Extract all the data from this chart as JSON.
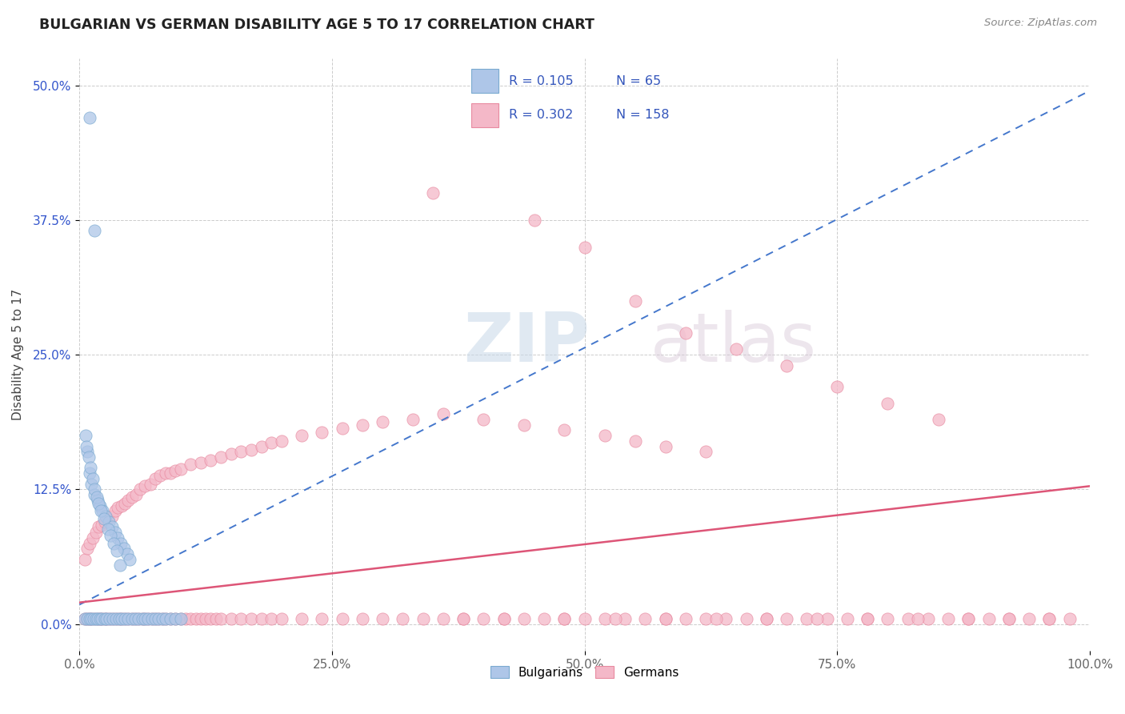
{
  "title": "BULGARIAN VS GERMAN DISABILITY AGE 5 TO 17 CORRELATION CHART",
  "source_text": "Source: ZipAtlas.com",
  "ylabel": "Disability Age 5 to 17",
  "xlim": [
    0,
    1.0
  ],
  "ylim": [
    -0.025,
    0.525
  ],
  "xticks": [
    0.0,
    0.25,
    0.5,
    0.75,
    1.0
  ],
  "xticklabels": [
    "0.0%",
    "25.0%",
    "50.0%",
    "75.0%",
    "100.0%"
  ],
  "yticks": [
    0.0,
    0.125,
    0.25,
    0.375,
    0.5
  ],
  "yticklabels": [
    "0.0%",
    "12.5%",
    "25.0%",
    "37.5%",
    "50.0%"
  ],
  "bulgarian_fill_color": "#aec6e8",
  "german_fill_color": "#f4b8c8",
  "bulgarian_edge_color": "#7aaad0",
  "german_edge_color": "#e88aa0",
  "bulgarian_line_color": "#4477cc",
  "german_line_color": "#dd5577",
  "watermark_color": "#d8e4f0",
  "legend_text_color": "#3355bb",
  "legend_R_bulgarian": "0.105",
  "legend_N_bulgarian": "65",
  "legend_R_german": "0.302",
  "legend_N_german": "158",
  "bulgarian_points_x": [
    0.01,
    0.015,
    0.005,
    0.008,
    0.01,
    0.012,
    0.014,
    0.016,
    0.018,
    0.02,
    0.022,
    0.025,
    0.027,
    0.03,
    0.033,
    0.036,
    0.039,
    0.042,
    0.045,
    0.048,
    0.052,
    0.055,
    0.058,
    0.062,
    0.065,
    0.068,
    0.072,
    0.075,
    0.078,
    0.082,
    0.085,
    0.09,
    0.095,
    0.1,
    0.008,
    0.01,
    0.012,
    0.015,
    0.018,
    0.02,
    0.023,
    0.026,
    0.029,
    0.032,
    0.035,
    0.038,
    0.041,
    0.044,
    0.047,
    0.05,
    0.006,
    0.007,
    0.009,
    0.011,
    0.013,
    0.015,
    0.017,
    0.019,
    0.021,
    0.024,
    0.028,
    0.031,
    0.034,
    0.037,
    0.04
  ],
  "bulgarian_points_y": [
    0.47,
    0.365,
    0.005,
    0.005,
    0.005,
    0.005,
    0.005,
    0.005,
    0.005,
    0.005,
    0.005,
    0.005,
    0.005,
    0.005,
    0.005,
    0.005,
    0.005,
    0.005,
    0.005,
    0.005,
    0.005,
    0.005,
    0.005,
    0.005,
    0.005,
    0.005,
    0.005,
    0.005,
    0.005,
    0.005,
    0.005,
    0.005,
    0.005,
    0.005,
    0.16,
    0.14,
    0.13,
    0.12,
    0.115,
    0.11,
    0.105,
    0.1,
    0.095,
    0.09,
    0.085,
    0.08,
    0.075,
    0.07,
    0.065,
    0.06,
    0.175,
    0.165,
    0.155,
    0.145,
    0.135,
    0.125,
    0.118,
    0.112,
    0.105,
    0.098,
    0.088,
    0.082,
    0.075,
    0.068,
    0.055
  ],
  "german_points_x": [
    0.005,
    0.008,
    0.01,
    0.012,
    0.015,
    0.018,
    0.02,
    0.022,
    0.025,
    0.027,
    0.03,
    0.033,
    0.036,
    0.039,
    0.042,
    0.045,
    0.048,
    0.052,
    0.055,
    0.058,
    0.062,
    0.065,
    0.068,
    0.072,
    0.075,
    0.078,
    0.082,
    0.085,
    0.09,
    0.095,
    0.1,
    0.105,
    0.11,
    0.115,
    0.12,
    0.125,
    0.13,
    0.135,
    0.14,
    0.15,
    0.16,
    0.17,
    0.18,
    0.19,
    0.2,
    0.22,
    0.24,
    0.26,
    0.28,
    0.3,
    0.32,
    0.34,
    0.36,
    0.38,
    0.4,
    0.42,
    0.44,
    0.46,
    0.48,
    0.5,
    0.52,
    0.54,
    0.56,
    0.58,
    0.6,
    0.62,
    0.64,
    0.66,
    0.68,
    0.7,
    0.72,
    0.74,
    0.76,
    0.78,
    0.8,
    0.82,
    0.84,
    0.86,
    0.88,
    0.9,
    0.92,
    0.94,
    0.96,
    0.98,
    0.005,
    0.008,
    0.01,
    0.013,
    0.016,
    0.019,
    0.022,
    0.025,
    0.028,
    0.032,
    0.035,
    0.038,
    0.042,
    0.045,
    0.048,
    0.052,
    0.056,
    0.06,
    0.065,
    0.07,
    0.075,
    0.08,
    0.085,
    0.09,
    0.095,
    0.1,
    0.11,
    0.12,
    0.13,
    0.14,
    0.15,
    0.16,
    0.17,
    0.18,
    0.19,
    0.2,
    0.22,
    0.24,
    0.26,
    0.28,
    0.3,
    0.33,
    0.36,
    0.4,
    0.44,
    0.48,
    0.52,
    0.55,
    0.58,
    0.62,
    0.35,
    0.45,
    0.5,
    0.55,
    0.6,
    0.65,
    0.7,
    0.75,
    0.8,
    0.85,
    0.38,
    0.42,
    0.48,
    0.53,
    0.58,
    0.63,
    0.68,
    0.73,
    0.78,
    0.83,
    0.88,
    0.92,
    0.96
  ],
  "german_points_y": [
    0.005,
    0.005,
    0.005,
    0.005,
    0.005,
    0.005,
    0.005,
    0.005,
    0.005,
    0.005,
    0.005,
    0.005,
    0.005,
    0.005,
    0.005,
    0.005,
    0.005,
    0.005,
    0.005,
    0.005,
    0.005,
    0.005,
    0.005,
    0.005,
    0.005,
    0.005,
    0.005,
    0.005,
    0.005,
    0.005,
    0.005,
    0.005,
    0.005,
    0.005,
    0.005,
    0.005,
    0.005,
    0.005,
    0.005,
    0.005,
    0.005,
    0.005,
    0.005,
    0.005,
    0.005,
    0.005,
    0.005,
    0.005,
    0.005,
    0.005,
    0.005,
    0.005,
    0.005,
    0.005,
    0.005,
    0.005,
    0.005,
    0.005,
    0.005,
    0.005,
    0.005,
    0.005,
    0.005,
    0.005,
    0.005,
    0.005,
    0.005,
    0.005,
    0.005,
    0.005,
    0.005,
    0.005,
    0.005,
    0.005,
    0.005,
    0.005,
    0.005,
    0.005,
    0.005,
    0.005,
    0.005,
    0.005,
    0.005,
    0.005,
    0.06,
    0.07,
    0.075,
    0.08,
    0.085,
    0.09,
    0.092,
    0.095,
    0.098,
    0.1,
    0.105,
    0.108,
    0.11,
    0.112,
    0.115,
    0.118,
    0.12,
    0.125,
    0.128,
    0.13,
    0.135,
    0.138,
    0.14,
    0.14,
    0.142,
    0.144,
    0.148,
    0.15,
    0.152,
    0.155,
    0.158,
    0.16,
    0.162,
    0.165,
    0.168,
    0.17,
    0.175,
    0.178,
    0.182,
    0.185,
    0.188,
    0.19,
    0.195,
    0.19,
    0.185,
    0.18,
    0.175,
    0.17,
    0.165,
    0.16,
    0.4,
    0.375,
    0.35,
    0.3,
    0.27,
    0.255,
    0.24,
    0.22,
    0.205,
    0.19,
    0.005,
    0.005,
    0.005,
    0.005,
    0.005,
    0.005,
    0.005,
    0.005,
    0.005,
    0.005,
    0.005,
    0.005,
    0.005
  ]
}
